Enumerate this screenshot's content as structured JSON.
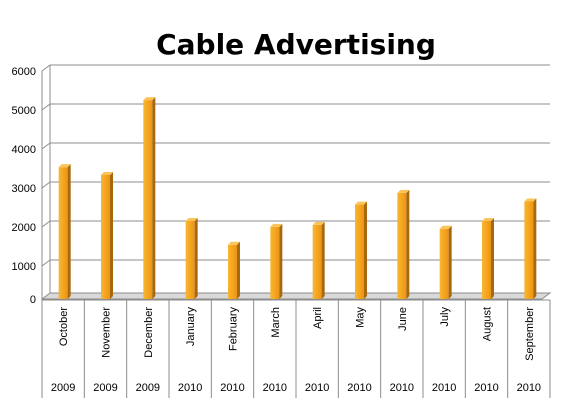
{
  "chart_data": {
    "type": "bar",
    "title": "Cable Advertising",
    "xlabel": "",
    "ylabel": "",
    "ylim": [
      0,
      6000
    ],
    "yticks": [
      0,
      1000,
      2000,
      3000,
      4000,
      5000,
      6000
    ],
    "grid": true,
    "legend": "none",
    "bar_color": "#F5A623",
    "categories": [
      "October",
      "November",
      "December",
      "January",
      "February",
      "March",
      "April",
      "May",
      "June",
      "July",
      "August",
      "September"
    ],
    "years": [
      "2009",
      "2009",
      "2009",
      "2010",
      "2010",
      "2010",
      "2010",
      "2010",
      "2010",
      "2010",
      "2010",
      "2010"
    ],
    "values": [
      3380,
      3180,
      5100,
      2000,
      1390,
      1850,
      1900,
      2420,
      2720,
      1800,
      2000,
      2500
    ]
  }
}
